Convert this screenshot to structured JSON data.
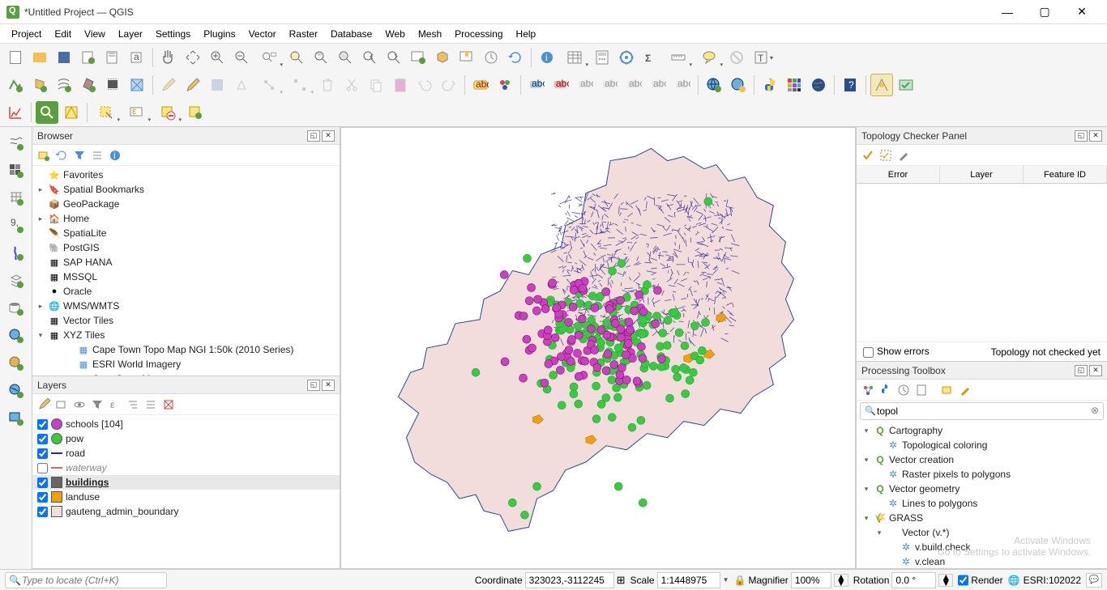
{
  "window": {
    "title": "*Untitled Project — QGIS"
  },
  "menu": [
    "Project",
    "Edit",
    "View",
    "Layer",
    "Settings",
    "Plugins",
    "Vector",
    "Raster",
    "Database",
    "Web",
    "Mesh",
    "Processing",
    "Help"
  ],
  "browser": {
    "title": "Browser",
    "items": [
      {
        "icon": "⭐",
        "label": "Favorites",
        "exp": ""
      },
      {
        "icon": "🔖",
        "label": "Spatial Bookmarks",
        "exp": "▸"
      },
      {
        "icon": "📦",
        "label": "GeoPackage",
        "exp": ""
      },
      {
        "icon": "🏠",
        "label": "Home",
        "exp": "▸"
      },
      {
        "icon": "🪶",
        "label": "SpatiaLite",
        "exp": ""
      },
      {
        "icon": "🐘",
        "label": "PostGIS",
        "exp": ""
      },
      {
        "icon": "▦",
        "label": "SAP HANA",
        "exp": ""
      },
      {
        "icon": "▦",
        "label": "MSSQL",
        "exp": ""
      },
      {
        "icon": "●",
        "label": "Oracle",
        "exp": ""
      },
      {
        "icon": "🌐",
        "label": "WMS/WMTS",
        "exp": "▸"
      },
      {
        "icon": "▦",
        "label": "Vector Tiles",
        "exp": ""
      },
      {
        "icon": "▦",
        "label": "XYZ Tiles",
        "exp": "▾"
      }
    ],
    "xyz_children": [
      "Cape Town Topo Map NGI 1:50k (2010 Series)",
      "ESRI World Imagery",
      "OpenStreetMap"
    ]
  },
  "layers": {
    "title": "Layers",
    "items": [
      {
        "checked": true,
        "swatch": "#c840c8",
        "shape": "circle",
        "label": "schools [104]",
        "style": ""
      },
      {
        "checked": true,
        "swatch": "#3cc93c",
        "shape": "circle",
        "label": "pow",
        "style": ""
      },
      {
        "checked": true,
        "swatch": "#2a2a8f",
        "shape": "line",
        "label": "road",
        "style": ""
      },
      {
        "checked": false,
        "swatch": "#d66",
        "shape": "line",
        "label": "waterway",
        "style": "italic"
      },
      {
        "checked": true,
        "swatch": "#666",
        "shape": "rect",
        "label": "buildings",
        "style": "bold",
        "selected": true
      },
      {
        "checked": true,
        "swatch": "#f2a007",
        "shape": "rect",
        "label": "landuse",
        "style": ""
      },
      {
        "checked": true,
        "swatch": "#f3dcdc",
        "shape": "rect",
        "label": "gauteng_admin_boundary",
        "style": ""
      }
    ]
  },
  "topo": {
    "title": "Topology Checker Panel",
    "columns": [
      "Error",
      "Layer",
      "Feature ID"
    ],
    "show_errors_label": "Show errors",
    "status": "Topology not checked yet"
  },
  "toolbox": {
    "title": "Processing Toolbox",
    "search": "topol",
    "tree": [
      {
        "type": "provider",
        "icon": "Q",
        "label": "Cartography",
        "children": [
          {
            "icon": "❄",
            "label": "Topological coloring"
          }
        ]
      },
      {
        "type": "provider",
        "icon": "Q",
        "label": "Vector creation",
        "children": [
          {
            "icon": "❄",
            "label": "Raster pixels to polygons"
          }
        ]
      },
      {
        "type": "provider",
        "icon": "Q",
        "label": "Vector geometry",
        "children": [
          {
            "icon": "❄",
            "label": "Lines to polygons"
          }
        ]
      },
      {
        "type": "provider",
        "icon": "🌾",
        "label": "GRASS",
        "children": [
          {
            "type": "group",
            "label": "Vector (v.*)",
            "children": [
              {
                "icon": "❄",
                "label": "v.build.check"
              },
              {
                "icon": "❄",
                "label": "v.clean"
              }
            ]
          }
        ]
      }
    ]
  },
  "status": {
    "locate_placeholder": "Type to locate (Ctrl+K)",
    "coord_label": "Coordinate",
    "coord_value": "323023,-3112245",
    "scale_label": "Scale",
    "scale_value": "1:1448975",
    "mag_label": "Magnifier",
    "mag_value": "100%",
    "rot_label": "Rotation",
    "rot_value": "0.0 °",
    "render_label": "Render",
    "crs": "ESRI:102022"
  },
  "watermark": {
    "line1": "Activate Windows",
    "line2": "Go to Settings to activate Windows."
  },
  "map": {
    "boundary_fill": "#f3dcdc",
    "boundary_stroke": "#2a4d8f",
    "road_color": "#2a2a8f",
    "pow_color": "#3cc93c",
    "school_color": "#c840c8",
    "landuse_color": "#f2a007",
    "point_radius": 5
  }
}
